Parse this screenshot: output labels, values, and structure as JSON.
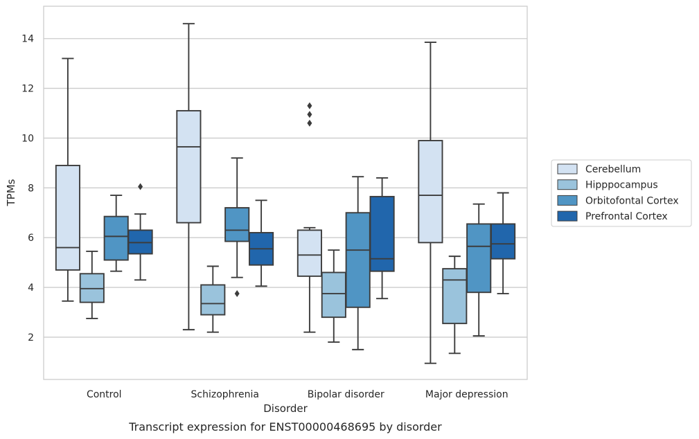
{
  "chart_data": {
    "type": "boxplot",
    "caption": "Transcript expression for ENST00000468695 by disorder",
    "xlabel": "Disorder",
    "ylabel": "TPMs",
    "ylim": [
      0.3,
      15.3
    ],
    "yticks": [
      2,
      4,
      6,
      8,
      10,
      12,
      14
    ],
    "grid": true,
    "legend_position": "right",
    "categories": [
      "Control",
      "Schizophrenia",
      "Bipolar disorder",
      "Major depression"
    ],
    "series": [
      {
        "name": "Cerebellum",
        "color": "#d3e2f2",
        "boxes": [
          {
            "whislo": 3.45,
            "q1": 4.7,
            "med": 5.6,
            "q3": 8.9,
            "whishi": 13.2,
            "fliers": []
          },
          {
            "whislo": 2.3,
            "q1": 6.6,
            "med": 9.65,
            "q3": 11.1,
            "whishi": 14.6,
            "fliers": []
          },
          {
            "whislo": 2.2,
            "q1": 4.45,
            "med": 5.3,
            "q3": 6.3,
            "whishi": 6.4,
            "fliers": [
              10.6,
              10.95,
              11.3
            ]
          },
          {
            "whislo": 0.95,
            "q1": 5.8,
            "med": 7.7,
            "q3": 9.9,
            "whishi": 13.85,
            "fliers": []
          }
        ]
      },
      {
        "name": "Hipppocampus",
        "color": "#9ac3dc",
        "boxes": [
          {
            "whislo": 2.75,
            "q1": 3.4,
            "med": 3.95,
            "q3": 4.55,
            "whishi": 5.45,
            "fliers": []
          },
          {
            "whislo": 2.2,
            "q1": 2.9,
            "med": 3.35,
            "q3": 4.1,
            "whishi": 4.85,
            "fliers": []
          },
          {
            "whislo": 1.8,
            "q1": 2.8,
            "med": 3.75,
            "q3": 4.6,
            "whishi": 5.5,
            "fliers": []
          },
          {
            "whislo": 1.35,
            "q1": 2.55,
            "med": 4.3,
            "q3": 4.75,
            "whishi": 5.25,
            "fliers": []
          }
        ]
      },
      {
        "name": "Orbitofontal Cortex",
        "color": "#5095c4",
        "boxes": [
          {
            "whislo": 4.65,
            "q1": 5.1,
            "med": 6.05,
            "q3": 6.85,
            "whishi": 7.7,
            "fliers": []
          },
          {
            "whislo": 4.4,
            "q1": 5.85,
            "med": 6.3,
            "q3": 7.2,
            "whishi": 9.2,
            "fliers": [
              3.75
            ]
          },
          {
            "whislo": 1.5,
            "q1": 3.2,
            "med": 5.5,
            "q3": 7.0,
            "whishi": 8.45,
            "fliers": []
          },
          {
            "whislo": 2.05,
            "q1": 3.8,
            "med": 5.65,
            "q3": 6.55,
            "whishi": 7.35,
            "fliers": []
          }
        ]
      },
      {
        "name": "Prefrontal Cortex",
        "color": "#2166ac",
        "boxes": [
          {
            "whislo": 4.3,
            "q1": 5.35,
            "med": 5.8,
            "q3": 6.3,
            "whishi": 6.95,
            "fliers": [
              8.05
            ]
          },
          {
            "whislo": 4.05,
            "q1": 4.9,
            "med": 5.55,
            "q3": 6.2,
            "whishi": 7.5,
            "fliers": []
          },
          {
            "whislo": 3.55,
            "q1": 4.65,
            "med": 5.15,
            "q3": 7.65,
            "whishi": 8.4,
            "fliers": []
          },
          {
            "whislo": 3.75,
            "q1": 5.15,
            "med": 5.75,
            "q3": 6.55,
            "whishi": 7.8,
            "fliers": []
          }
        ]
      }
    ]
  }
}
